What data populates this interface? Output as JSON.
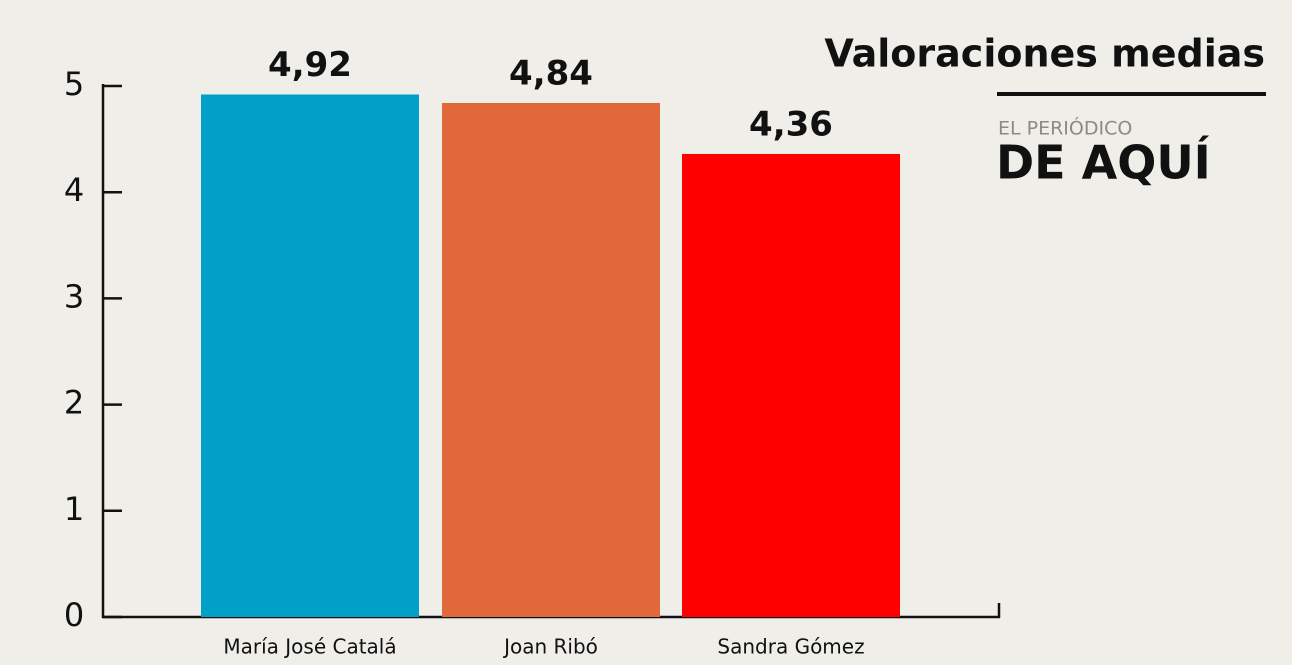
{
  "chart_data": {
    "type": "bar",
    "title": "Valoraciones medias",
    "logo": [
      "EL PERIÓDICO",
      "DE AQUÍ"
    ],
    "categories": [
      "María José Catalá",
      "Joan Ribó",
      "Sandra Gómez"
    ],
    "values": [
      4.92,
      4.84,
      4.36
    ],
    "value_labels": [
      "4,92",
      "4,84",
      "4,36"
    ],
    "colors": [
      "#00a0c8",
      "#e0683a",
      "#ff0000"
    ],
    "ylim": [
      0,
      5
    ],
    "yticks": [
      0,
      1,
      2,
      3,
      4,
      5
    ],
    "grid": false
  }
}
